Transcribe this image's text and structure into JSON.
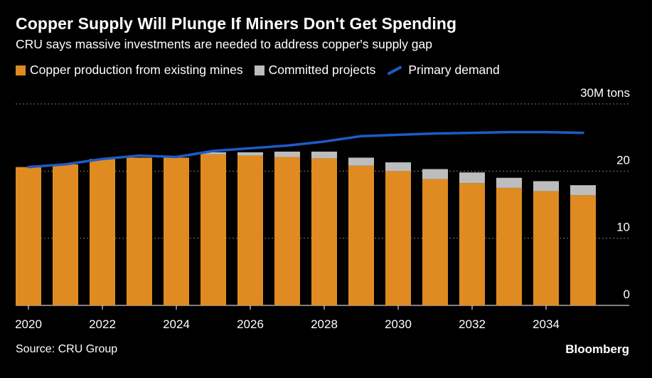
{
  "title": "Copper Supply Will Plunge If Miners Don't Get Spending",
  "subtitle": "CRU says massive investments are needed to address copper's supply gap",
  "source": "Source: CRU Group",
  "brand": "Bloomberg",
  "colors": {
    "existing": "#e08a22",
    "committed": "#bdbdbd",
    "demand": "#1e5bc6",
    "grid": "#777777"
  },
  "chart_data": {
    "type": "bar",
    "stacked": true,
    "years": [
      2020,
      2021,
      2022,
      2023,
      2024,
      2025,
      2026,
      2027,
      2028,
      2029,
      2030,
      2031,
      2032,
      2033,
      2034,
      2035
    ],
    "tick_labels": [
      "2020",
      "2022",
      "2024",
      "2026",
      "2028",
      "2030",
      "2032",
      "2034"
    ],
    "tick_years": [
      2020,
      2022,
      2024,
      2026,
      2028,
      2030,
      2032,
      2034
    ],
    "y_ticks": [
      {
        "value": 0,
        "label": "0"
      },
      {
        "value": 10,
        "label": "10"
      },
      {
        "value": 20,
        "label": "20"
      },
      {
        "value": 30,
        "label": "30M tons"
      }
    ],
    "ylim": [
      0,
      30
    ],
    "grid": true,
    "legend_position": "top-left",
    "series": [
      {
        "name": "Copper production from existing mines",
        "kind": "bar",
        "values": [
          20.6,
          21.0,
          21.8,
          22.0,
          22.0,
          22.5,
          22.3,
          22.1,
          21.9,
          20.8,
          20.0,
          18.8,
          18.2,
          17.5,
          17.0,
          16.4
        ]
      },
      {
        "name": "Committed projects",
        "kind": "bar",
        "values": [
          0.0,
          0.0,
          0.0,
          0.0,
          0.0,
          0.3,
          0.5,
          0.8,
          1.0,
          1.2,
          1.3,
          1.5,
          1.6,
          1.5,
          1.5,
          1.5
        ]
      },
      {
        "name": "Primary demand",
        "kind": "line",
        "values": [
          20.6,
          21.0,
          21.8,
          22.3,
          22.1,
          23.0,
          23.4,
          23.8,
          24.4,
          25.2,
          25.4,
          25.6,
          25.7,
          25.8,
          25.8,
          25.7
        ]
      }
    ]
  }
}
